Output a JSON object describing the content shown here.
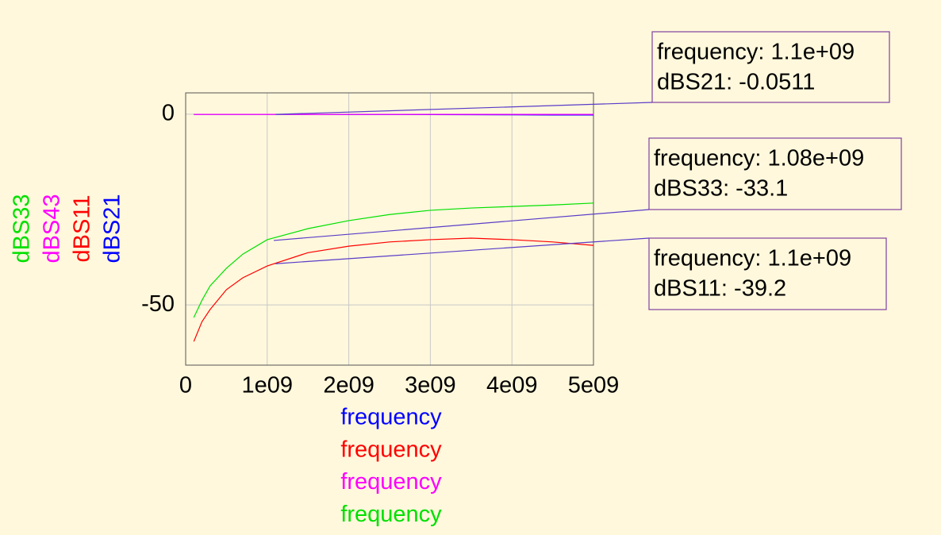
{
  "chart_data": {
    "type": "line",
    "x": [
      100000000,
      200000000,
      300000000,
      500000000,
      700000000,
      1000000000,
      1500000000,
      2000000000,
      2500000000,
      3000000000,
      3500000000,
      4000000000,
      4500000000,
      5000000000
    ],
    "series": [
      {
        "name": "dBS21",
        "color": "#0000ff",
        "xlabel": "frequency",
        "values": [
          -0.05,
          -0.05,
          -0.05,
          -0.05,
          -0.05,
          -0.05,
          -0.06,
          -0.07,
          -0.08,
          -0.1,
          -0.12,
          -0.15,
          -0.2,
          -0.2
        ]
      },
      {
        "name": "dBS11",
        "color": "#ff0000",
        "xlabel": "frequency",
        "values": [
          -59.6,
          -54.4,
          -51.2,
          -46,
          -42.9,
          -39.8,
          -36.3,
          -34.6,
          -33.5,
          -32.9,
          -32.5,
          -32.9,
          -33.5,
          -34.4
        ]
      },
      {
        "name": "dBS43",
        "color": "#ff00ff",
        "xlabel": "frequency",
        "values": [
          -0.05,
          -0.05,
          -0.05,
          -0.05,
          -0.05,
          -0.05,
          -0.05,
          -0.05,
          -0.05,
          -0.05,
          -0.05,
          -0.05,
          -0.05,
          -0.05
        ]
      },
      {
        "name": "dBS33",
        "color": "#00e000",
        "xlabel": "frequency",
        "values": [
          -53.3,
          -48.8,
          -45,
          -40.4,
          -36.7,
          -32.9,
          -30,
          -27.9,
          -26.3,
          -25.2,
          -24.6,
          -24.2,
          -23.8,
          -23.3
        ]
      }
    ],
    "xlim": [
      0,
      5000000000
    ],
    "xticks": [
      0,
      {
        "value": 1000000000,
        "label": "1e09"
      },
      {
        "value": 2000000000,
        "label": "2e09"
      },
      {
        "value": 3000000000,
        "label": "3e09"
      },
      {
        "value": 4000000000,
        "label": "4e09"
      },
      {
        "value": 5000000000,
        "label": "5e09"
      }
    ],
    "ylim": [
      -65.8,
      5.6
    ],
    "yticks": [
      0,
      -50
    ],
    "grid": true,
    "markers": [
      {
        "lines": [
          "frequency: 1.1e+09",
          "dBS21: -0.0511"
        ],
        "x": 1100000000,
        "y": -0.0511
      },
      {
        "lines": [
          "frequency: 1.08e+09",
          "dBS33: -33.1"
        ],
        "x": 1080000000,
        "y": -33.1
      },
      {
        "lines": [
          "frequency: 1.1e+09",
          "dBS11: -39.2"
        ],
        "x": 1100000000,
        "y": -39.2
      }
    ]
  }
}
